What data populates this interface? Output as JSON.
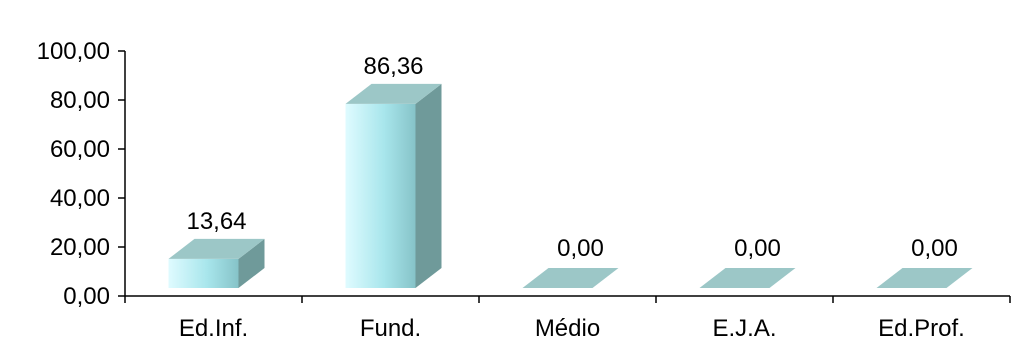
{
  "chart_data": {
    "type": "bar",
    "categories": [
      "Ed.Inf.",
      "Fund.",
      "Médio",
      "E.J.A.",
      "Ed.Prof."
    ],
    "values": [
      13.64,
      86.36,
      0.0,
      0.0,
      0.0
    ],
    "data_labels": [
      "13,64",
      "86,36",
      "0,00",
      "0,00",
      "0,00"
    ],
    "y_ticks": [
      "0,00",
      "20,00",
      "40,00",
      "60,00",
      "80,00",
      "100,00"
    ],
    "ylim": [
      0,
      100
    ],
    "style": "3d-column",
    "grid": false,
    "legend": "none",
    "colors": {
      "front_light": "#dffbff",
      "front_mid": "#a8e6ec",
      "front_dark": "#7fb9bd",
      "top": "#9cc7c7",
      "side": "#6f9a9a",
      "axis": "#000000"
    }
  }
}
